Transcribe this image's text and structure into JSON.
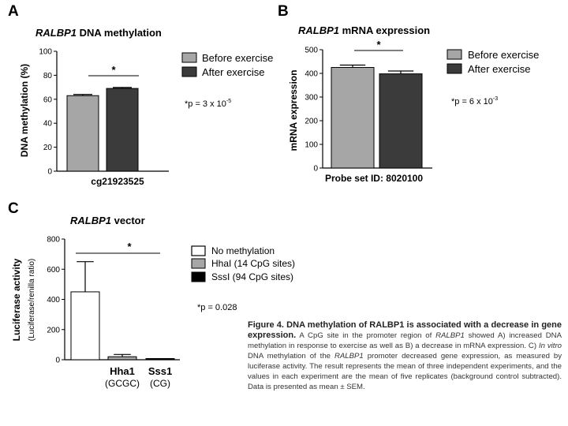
{
  "panels": {
    "A": {
      "letter": "A",
      "title_gene": "RALBP1",
      "title_rest": " DNA methylation",
      "ylabel": "DNA methylation (%)",
      "xlabel": "cg21923525",
      "sig_star": "*",
      "p_prefix": "*p = 3 x 10",
      "p_exp": "-5"
    },
    "B": {
      "letter": "B",
      "title_gene": "RALBP1",
      "title_rest": " mRNA expression",
      "ylabel": "mRNA expression",
      "xlabel": "Probe set ID: 8020100",
      "sig_star": "*",
      "p_prefix": "*p = 6 x 10",
      "p_exp": "-3"
    },
    "C": {
      "letter": "C",
      "title_gene": "RALBP1",
      "title_rest": " vector",
      "ylabel_line1": "Luciferase activity",
      "ylabel_line2": "(Luciferase/renilla ratio)",
      "sig_star": "*",
      "p_text": "*p = 0.028",
      "cat_hha": "Hha1",
      "cat_hha_sub": "(GCGC)",
      "cat_sss": "Sss1",
      "cat_sss_sub": "(CG)"
    }
  },
  "legends": {
    "AB": [
      "Before exercise",
      "After exercise"
    ],
    "C": [
      "No methylation",
      "HhaI (14 CpG sites)",
      "SssI (94 CpG sites)"
    ]
  },
  "colors": {
    "before": "#a6a6a6",
    "after": "#3b3b3b",
    "no_methylation": "#ffffff",
    "hhai": "#a6a6a6",
    "sssi": "#000000"
  },
  "caption": {
    "heading": "Figure 4. DNA methylation of RALBP1 is associated with a decrease in gene expression.",
    "t1": " A CpG site in the promoter region of ",
    "gene1": "RALBP1",
    "t2": " showed A) increased DNA methylation in response to exercise as well as B) a decrease in mRNA expression. C) ",
    "invitro": "In vitro",
    "t3": " DNA methylation of the ",
    "gene2": "RALBP1",
    "t4": " promoter decreased gene expression, as measured by luciferase activity. The result represents the mean of three independent experiments, and the values in each experiment are the mean of five replicates (background control subtracted). Data is presented as mean ± SEM."
  },
  "chart_data": [
    {
      "type": "bar",
      "title": "RALBP1 DNA methylation",
      "xlabel": "cg21923525",
      "ylabel": "DNA methylation (%)",
      "ylim": [
        0,
        100
      ],
      "yticks": [
        0,
        20,
        40,
        60,
        80,
        100
      ],
      "categories": [
        "Before exercise",
        "After exercise"
      ],
      "values": [
        63,
        69
      ],
      "errors": [
        1,
        0.8
      ],
      "legend": "right",
      "grid": false
    },
    {
      "type": "bar",
      "title": "RALBP1 mRNA expression",
      "xlabel": "Probe set ID: 8020100",
      "ylabel": "mRNA expression",
      "ylim": [
        0,
        500
      ],
      "yticks": [
        0,
        100,
        200,
        300,
        400,
        500
      ],
      "categories": [
        "Before exercise",
        "After exercise"
      ],
      "values": [
        425,
        398
      ],
      "errors": [
        10,
        12
      ],
      "legend": "right",
      "grid": false
    },
    {
      "type": "bar",
      "title": "RALBP1 vector",
      "ylabel": "Luciferase activity (Luciferase/renilla ratio)",
      "ylim": [
        0,
        800
      ],
      "yticks": [
        0,
        200,
        400,
        600,
        800
      ],
      "categories": [
        "No methylation",
        "HhaI (14 CpG sites)",
        "SssI (94 CpG sites)"
      ],
      "values": [
        450,
        20,
        2
      ],
      "errors": [
        200,
        15,
        1
      ],
      "legend": "right",
      "grid": false
    }
  ]
}
